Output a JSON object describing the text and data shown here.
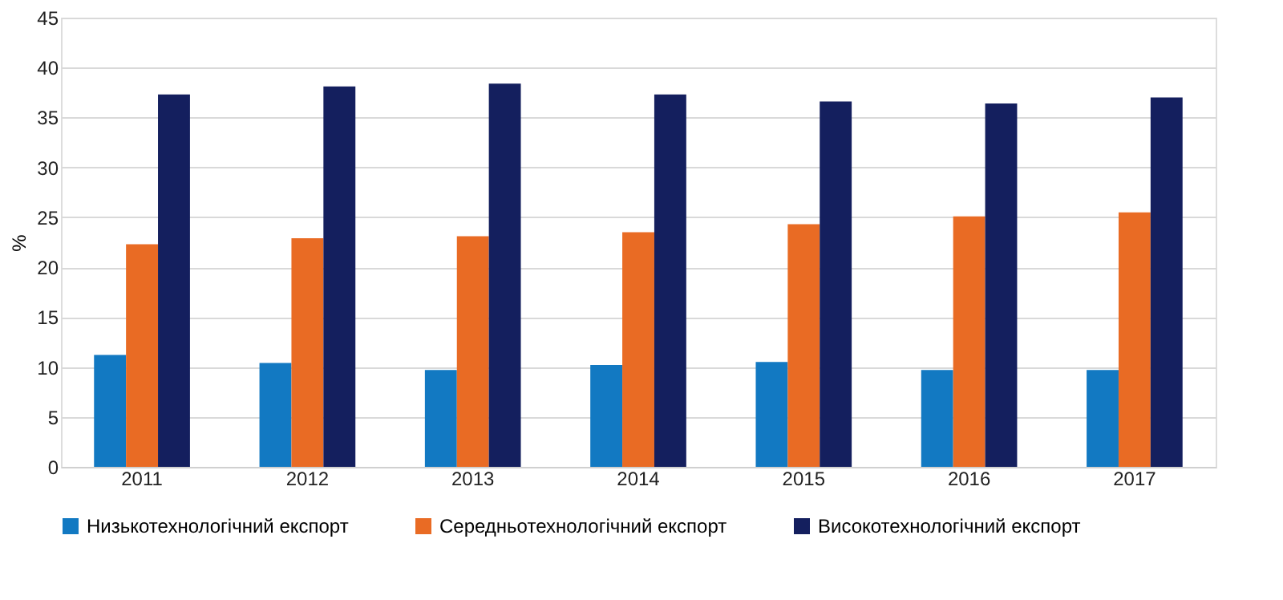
{
  "chart_data": {
    "type": "bar",
    "ylabel": "%",
    "categories": [
      "2011",
      "2012",
      "2013",
      "2014",
      "2015",
      "2016",
      "2017"
    ],
    "series": [
      {
        "name": "Низькотехнологічний експорт",
        "color": "#1279c2",
        "values": [
          11.2,
          10.4,
          9.7,
          10.2,
          10.5,
          9.7,
          9.7
        ]
      },
      {
        "name": "Середньотехнологічний експорт",
        "color": "#e96b24",
        "values": [
          22.3,
          22.9,
          23.1,
          23.5,
          24.3,
          25.1,
          25.5
        ]
      },
      {
        "name": "Високотехнологічний експорт",
        "color": "#141f5e",
        "values": [
          37.3,
          38.1,
          38.4,
          37.3,
          36.6,
          36.4,
          37.0
        ]
      }
    ],
    "ylim": [
      0,
      45
    ],
    "yticks": [
      0,
      5,
      10,
      15,
      20,
      25,
      30,
      35,
      40,
      45
    ],
    "grid": "y",
    "legend": "bottom"
  }
}
